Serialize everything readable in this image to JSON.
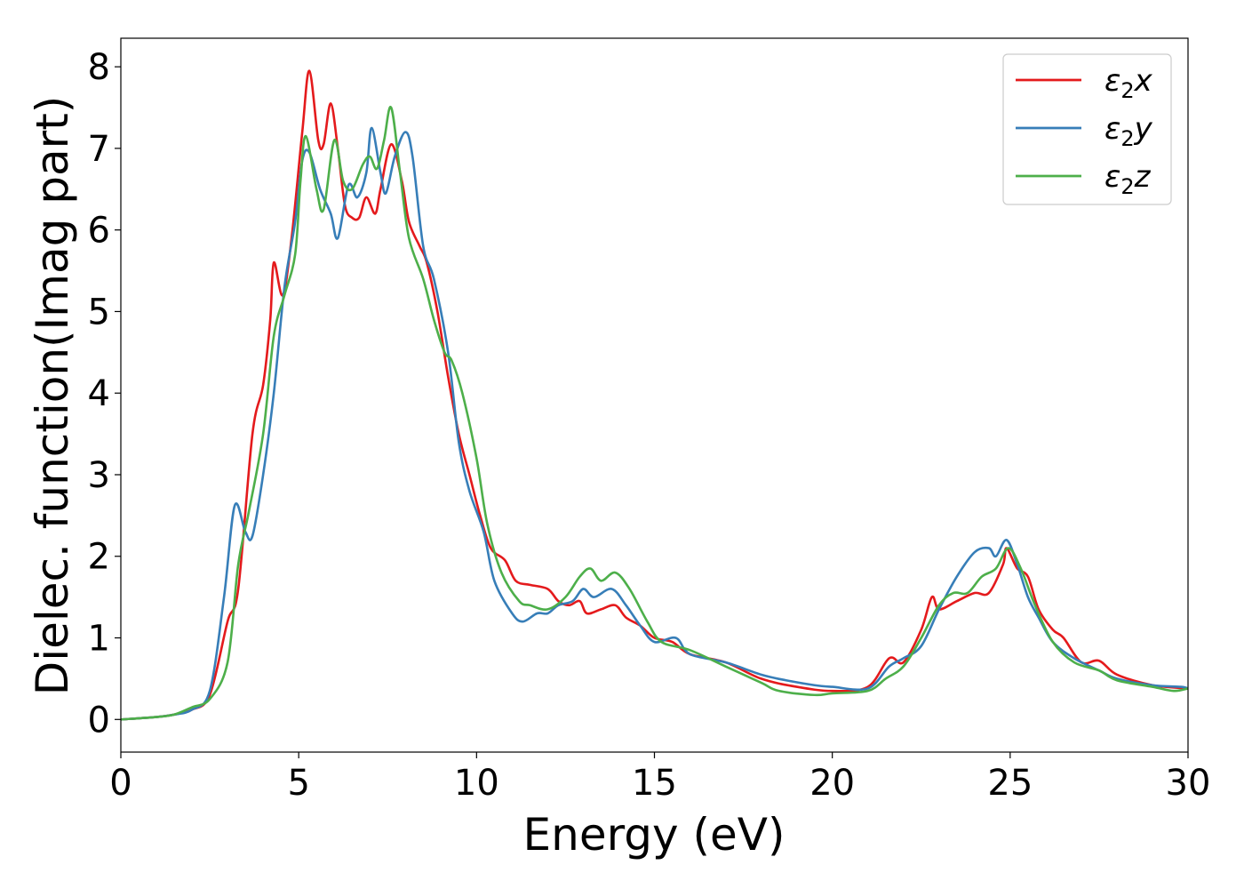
{
  "chart_data": {
    "type": "line",
    "title": "",
    "xlabel": "Energy (eV)",
    "ylabel": "Dielec. function(Imag part)",
    "xlim": [
      0,
      30
    ],
    "ylim": [
      -0.4,
      8.35
    ],
    "xticks": [
      0,
      5,
      10,
      15,
      20,
      25,
      30
    ],
    "xtick_labels": [
      "0",
      "5",
      "10",
      "15",
      "20",
      "25",
      "30"
    ],
    "yticks": [
      0,
      1,
      2,
      3,
      4,
      5,
      6,
      7,
      8
    ],
    "ytick_labels": [
      "0",
      "1",
      "2",
      "3",
      "4",
      "5",
      "6",
      "7",
      "8"
    ],
    "grid": false,
    "legend_position": "top-right",
    "series": [
      {
        "name": "ε2x",
        "legend_base": "ε",
        "legend_sub": "2",
        "legend_suffix": "x",
        "color": "#e41a1c",
        "points": [
          [
            0,
            0
          ],
          [
            1,
            0.03
          ],
          [
            1.5,
            0.06
          ],
          [
            2,
            0.12
          ],
          [
            2.5,
            0.3
          ],
          [
            3,
            1.2
          ],
          [
            3.3,
            1.6
          ],
          [
            3.7,
            3.5
          ],
          [
            4,
            4.1
          ],
          [
            4.2,
            4.9
          ],
          [
            4.3,
            5.6
          ],
          [
            4.55,
            5.2
          ],
          [
            4.8,
            5.9
          ],
          [
            5.1,
            7.2
          ],
          [
            5.3,
            7.95
          ],
          [
            5.55,
            7.1
          ],
          [
            5.7,
            7.05
          ],
          [
            5.9,
            7.55
          ],
          [
            6.1,
            7.0
          ],
          [
            6.3,
            6.3
          ],
          [
            6.5,
            6.15
          ],
          [
            6.7,
            6.15
          ],
          [
            6.9,
            6.4
          ],
          [
            7.15,
            6.2
          ],
          [
            7.3,
            6.5
          ],
          [
            7.6,
            7.05
          ],
          [
            7.9,
            6.6
          ],
          [
            8.1,
            6.1
          ],
          [
            8.4,
            5.8
          ],
          [
            8.6,
            5.6
          ],
          [
            8.9,
            5.0
          ],
          [
            9.2,
            4.2
          ],
          [
            9.5,
            3.5
          ],
          [
            9.8,
            3.0
          ],
          [
            10.1,
            2.5
          ],
          [
            10.4,
            2.1
          ],
          [
            10.8,
            1.95
          ],
          [
            11.1,
            1.7
          ],
          [
            11.5,
            1.65
          ],
          [
            12.0,
            1.6
          ],
          [
            12.3,
            1.45
          ],
          [
            12.6,
            1.4
          ],
          [
            12.9,
            1.45
          ],
          [
            13.1,
            1.3
          ],
          [
            13.5,
            1.35
          ],
          [
            13.9,
            1.4
          ],
          [
            14.2,
            1.25
          ],
          [
            14.6,
            1.15
          ],
          [
            15.0,
            1.0
          ],
          [
            15.5,
            0.95
          ],
          [
            16.0,
            0.8
          ],
          [
            17.0,
            0.7
          ],
          [
            18.0,
            0.5
          ],
          [
            19.0,
            0.4
          ],
          [
            20.0,
            0.35
          ],
          [
            21.0,
            0.4
          ],
          [
            21.6,
            0.75
          ],
          [
            22.0,
            0.7
          ],
          [
            22.5,
            1.1
          ],
          [
            22.8,
            1.5
          ],
          [
            23.0,
            1.35
          ],
          [
            23.5,
            1.45
          ],
          [
            24.0,
            1.55
          ],
          [
            24.4,
            1.55
          ],
          [
            24.8,
            1.9
          ],
          [
            24.9,
            2.1
          ],
          [
            25.2,
            1.85
          ],
          [
            25.5,
            1.75
          ],
          [
            25.8,
            1.35
          ],
          [
            26.2,
            1.1
          ],
          [
            26.5,
            1.0
          ],
          [
            27.0,
            0.7
          ],
          [
            27.5,
            0.72
          ],
          [
            28.0,
            0.55
          ],
          [
            29.0,
            0.42
          ],
          [
            30.0,
            0.38
          ]
        ]
      },
      {
        "name": "ε2y",
        "legend_base": "ε",
        "legend_sub": "2",
        "legend_suffix": "y",
        "color": "#377eb8",
        "points": [
          [
            0,
            0
          ],
          [
            1,
            0.03
          ],
          [
            1.5,
            0.06
          ],
          [
            2,
            0.12
          ],
          [
            2.5,
            0.35
          ],
          [
            2.9,
            1.5
          ],
          [
            3.2,
            2.62
          ],
          [
            3.5,
            2.3
          ],
          [
            3.7,
            2.25
          ],
          [
            4.0,
            3.0
          ],
          [
            4.3,
            4.0
          ],
          [
            4.6,
            5.3
          ],
          [
            4.9,
            6.1
          ],
          [
            5.1,
            6.85
          ],
          [
            5.3,
            6.95
          ],
          [
            5.6,
            6.5
          ],
          [
            5.9,
            6.2
          ],
          [
            6.1,
            5.9
          ],
          [
            6.4,
            6.55
          ],
          [
            6.65,
            6.4
          ],
          [
            6.9,
            6.7
          ],
          [
            7.05,
            7.25
          ],
          [
            7.3,
            6.7
          ],
          [
            7.45,
            6.45
          ],
          [
            7.7,
            6.9
          ],
          [
            8.0,
            7.2
          ],
          [
            8.2,
            6.9
          ],
          [
            8.5,
            5.8
          ],
          [
            8.8,
            5.4
          ],
          [
            9.2,
            4.5
          ],
          [
            9.5,
            3.4
          ],
          [
            9.8,
            2.8
          ],
          [
            10.2,
            2.3
          ],
          [
            10.5,
            1.7
          ],
          [
            11.0,
            1.3
          ],
          [
            11.3,
            1.2
          ],
          [
            11.7,
            1.3
          ],
          [
            12.0,
            1.3
          ],
          [
            12.3,
            1.4
          ],
          [
            12.7,
            1.45
          ],
          [
            13.0,
            1.6
          ],
          [
            13.3,
            1.5
          ],
          [
            13.8,
            1.6
          ],
          [
            14.2,
            1.4
          ],
          [
            14.6,
            1.15
          ],
          [
            15.0,
            0.95
          ],
          [
            15.6,
            1.0
          ],
          [
            16.0,
            0.8
          ],
          [
            17.0,
            0.7
          ],
          [
            18.0,
            0.55
          ],
          [
            18.7,
            0.48
          ],
          [
            19.5,
            0.42
          ],
          [
            20.0,
            0.4
          ],
          [
            21.0,
            0.38
          ],
          [
            21.6,
            0.65
          ],
          [
            22.0,
            0.75
          ],
          [
            22.5,
            0.9
          ],
          [
            23.0,
            1.35
          ],
          [
            23.5,
            1.75
          ],
          [
            24.0,
            2.05
          ],
          [
            24.4,
            2.1
          ],
          [
            24.6,
            2.0
          ],
          [
            24.9,
            2.2
          ],
          [
            25.2,
            1.9
          ],
          [
            25.5,
            1.5
          ],
          [
            25.8,
            1.25
          ],
          [
            26.2,
            0.95
          ],
          [
            26.8,
            0.75
          ],
          [
            27.5,
            0.6
          ],
          [
            28.0,
            0.5
          ],
          [
            29.0,
            0.42
          ],
          [
            29.8,
            0.4
          ],
          [
            30.0,
            0.38
          ]
        ]
      },
      {
        "name": "ε2z",
        "legend_base": "ε",
        "legend_sub": "2",
        "legend_suffix": "z",
        "color": "#4daf4a",
        "points": [
          [
            0,
            0
          ],
          [
            1,
            0.03
          ],
          [
            1.5,
            0.06
          ],
          [
            2,
            0.15
          ],
          [
            2.5,
            0.25
          ],
          [
            3.0,
            0.7
          ],
          [
            3.3,
            1.9
          ],
          [
            3.6,
            2.55
          ],
          [
            4.0,
            3.5
          ],
          [
            4.3,
            4.7
          ],
          [
            4.6,
            5.2
          ],
          [
            4.9,
            5.7
          ],
          [
            5.05,
            6.6
          ],
          [
            5.2,
            7.15
          ],
          [
            5.5,
            6.5
          ],
          [
            5.7,
            6.25
          ],
          [
            6.0,
            7.1
          ],
          [
            6.25,
            6.6
          ],
          [
            6.5,
            6.5
          ],
          [
            6.8,
            6.8
          ],
          [
            7.0,
            6.9
          ],
          [
            7.2,
            6.75
          ],
          [
            7.4,
            7.1
          ],
          [
            7.6,
            7.5
          ],
          [
            7.85,
            6.7
          ],
          [
            8.1,
            5.9
          ],
          [
            8.5,
            5.4
          ],
          [
            8.8,
            4.9
          ],
          [
            9.1,
            4.5
          ],
          [
            9.3,
            4.4
          ],
          [
            9.6,
            4.0
          ],
          [
            10.0,
            3.2
          ],
          [
            10.3,
            2.4
          ],
          [
            10.7,
            1.8
          ],
          [
            11.2,
            1.45
          ],
          [
            11.5,
            1.4
          ],
          [
            12.0,
            1.35
          ],
          [
            12.5,
            1.5
          ],
          [
            12.9,
            1.75
          ],
          [
            13.2,
            1.85
          ],
          [
            13.5,
            1.7
          ],
          [
            13.9,
            1.8
          ],
          [
            14.3,
            1.6
          ],
          [
            14.8,
            1.2
          ],
          [
            15.2,
            0.95
          ],
          [
            16.0,
            0.85
          ],
          [
            17.0,
            0.65
          ],
          [
            18.0,
            0.45
          ],
          [
            18.5,
            0.35
          ],
          [
            19.5,
            0.3
          ],
          [
            20.0,
            0.32
          ],
          [
            21.0,
            0.35
          ],
          [
            21.5,
            0.5
          ],
          [
            22.0,
            0.65
          ],
          [
            22.5,
            1.0
          ],
          [
            23.0,
            1.4
          ],
          [
            23.4,
            1.55
          ],
          [
            23.8,
            1.55
          ],
          [
            24.2,
            1.75
          ],
          [
            24.6,
            1.85
          ],
          [
            24.95,
            2.1
          ],
          [
            25.3,
            1.85
          ],
          [
            25.7,
            1.4
          ],
          [
            26.2,
            0.95
          ],
          [
            26.8,
            0.7
          ],
          [
            27.5,
            0.6
          ],
          [
            28.0,
            0.48
          ],
          [
            29.0,
            0.4
          ],
          [
            29.6,
            0.35
          ],
          [
            30.0,
            0.38
          ]
        ]
      }
    ]
  }
}
